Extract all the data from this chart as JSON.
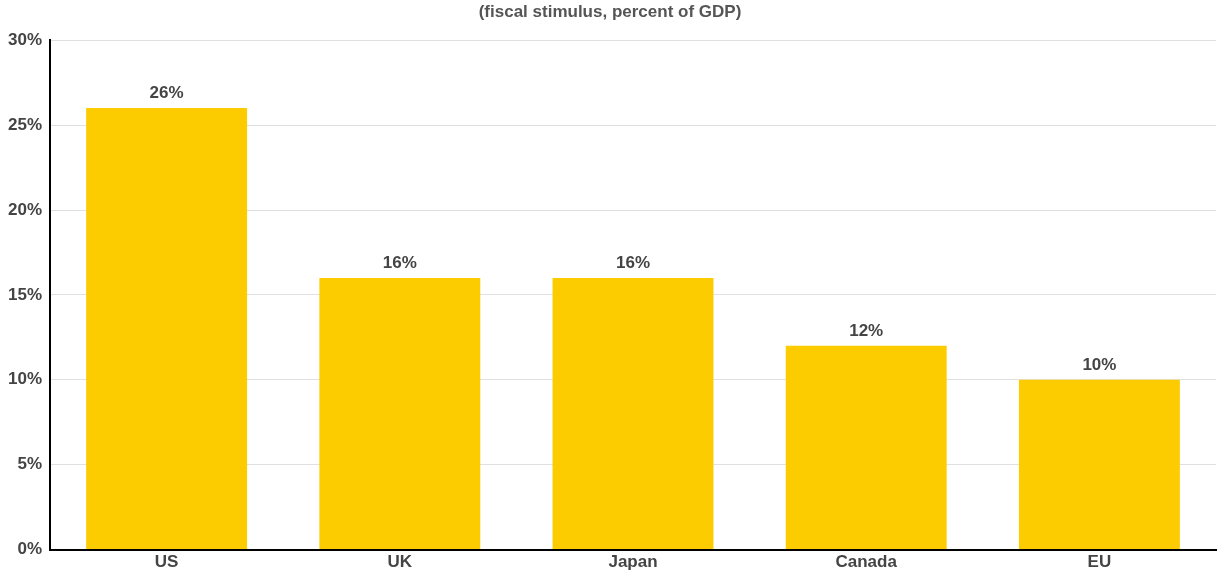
{
  "chart_data": {
    "type": "bar",
    "subtitle": "(fiscal stimulus, percent of GDP)",
    "categories": [
      "US",
      "UK",
      "Japan",
      "Canada",
      "EU"
    ],
    "values": [
      26,
      16,
      16,
      12,
      10
    ],
    "color": "#fccb00",
    "value_labels": [
      "26%",
      "16%",
      "16%",
      "12%",
      "10%"
    ],
    "ylim": [
      0,
      30
    ],
    "yticks": [
      {
        "value": 0,
        "label": "0%"
      },
      {
        "value": 5,
        "label": "5%"
      },
      {
        "value": 10,
        "label": "10%"
      },
      {
        "value": 15,
        "label": "15%"
      },
      {
        "value": 20,
        "label": "20%"
      },
      {
        "value": 25,
        "label": "25%"
      },
      {
        "value": 30,
        "label": "30%"
      }
    ],
    "grid": "y"
  }
}
